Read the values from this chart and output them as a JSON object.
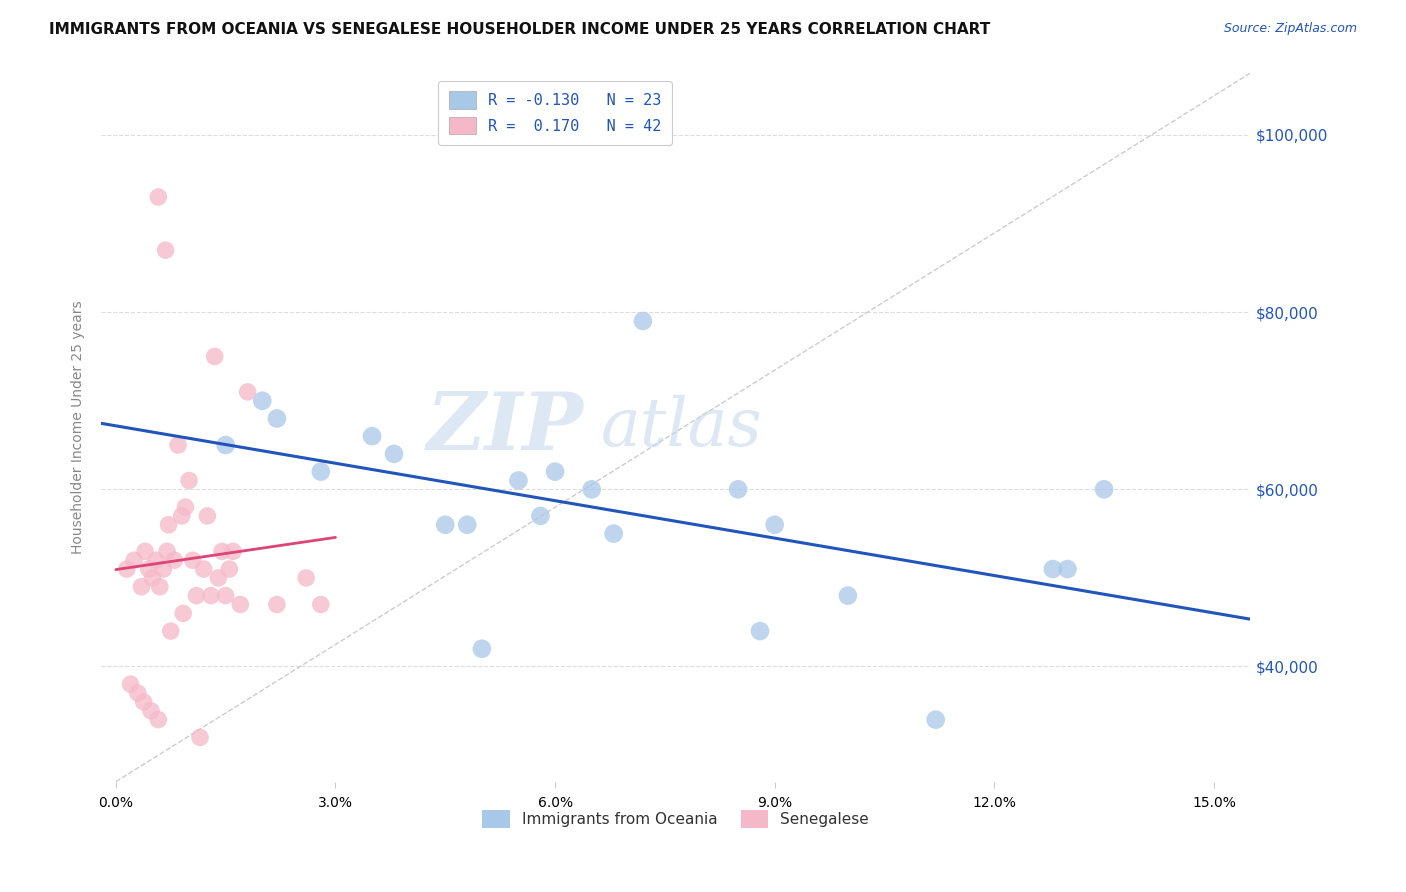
{
  "title": "IMMIGRANTS FROM OCEANIA VS SENEGALESE HOUSEHOLDER INCOME UNDER 25 YEARS CORRELATION CHART",
  "source": "Source: ZipAtlas.com",
  "xlabel_vals": [
    0.0,
    3.0,
    6.0,
    9.0,
    12.0,
    15.0
  ],
  "ylabel_ticks": [
    40000,
    60000,
    80000,
    100000
  ],
  "ylabel_labels": [
    "$40,000",
    "$60,000",
    "$80,000",
    "$100,000"
  ],
  "xlim": [
    -0.2,
    15.5
  ],
  "ylim": [
    27000,
    107000
  ],
  "legend_r_blue": "-0.130",
  "legend_n_blue": "23",
  "legend_r_pink": "0.170",
  "legend_n_pink": "42",
  "legend_bottom_blue": "Immigrants from Oceania",
  "legend_bottom_pink": "Senegalese",
  "watermark_zip": "ZIP",
  "watermark_atlas": "atlas",
  "blue_color": "#a8c8e8",
  "pink_color": "#f5b8c8",
  "blue_line_color": "#2255bb",
  "pink_line_color": "#dd4477",
  "diag_line_color": "#cccccc",
  "blue_scatter_x": [
    1.5,
    2.2,
    2.8,
    3.5,
    3.8,
    4.5,
    5.5,
    5.8,
    6.0,
    6.5,
    7.2,
    8.5,
    9.0,
    5.0,
    6.8,
    4.8,
    10.0,
    12.8,
    13.0,
    13.5,
    8.8,
    2.0,
    11.2
  ],
  "blue_scatter_y": [
    65000,
    68000,
    62000,
    66000,
    64000,
    56000,
    61000,
    57000,
    62000,
    60000,
    79000,
    60000,
    56000,
    42000,
    55000,
    56000,
    48000,
    51000,
    51000,
    60000,
    44000,
    70000,
    34000
  ],
  "pink_scatter_x": [
    0.15,
    0.25,
    0.35,
    0.4,
    0.45,
    0.5,
    0.55,
    0.6,
    0.65,
    0.7,
    0.72,
    0.8,
    0.85,
    0.9,
    0.95,
    1.0,
    1.05,
    1.1,
    1.2,
    1.25,
    1.3,
    1.4,
    1.45,
    1.5,
    1.55,
    1.6,
    1.7,
    0.2,
    0.3,
    0.38,
    0.48,
    0.58,
    0.75,
    0.92,
    1.15,
    2.2,
    2.6,
    2.8,
    1.8,
    0.68,
    0.58,
    1.35
  ],
  "pink_scatter_y": [
    51000,
    52000,
    49000,
    53000,
    51000,
    50000,
    52000,
    49000,
    51000,
    53000,
    56000,
    52000,
    65000,
    57000,
    58000,
    61000,
    52000,
    48000,
    51000,
    57000,
    48000,
    50000,
    53000,
    48000,
    51000,
    53000,
    47000,
    38000,
    37000,
    36000,
    35000,
    34000,
    44000,
    46000,
    32000,
    47000,
    50000,
    47000,
    71000,
    87000,
    93000,
    75000
  ],
  "grid_color": "#dddddd",
  "background_color": "#ffffff",
  "title_fontsize": 11,
  "ylabel_fontsize": 10,
  "tick_fontsize": 10,
  "source_fontsize": 9
}
